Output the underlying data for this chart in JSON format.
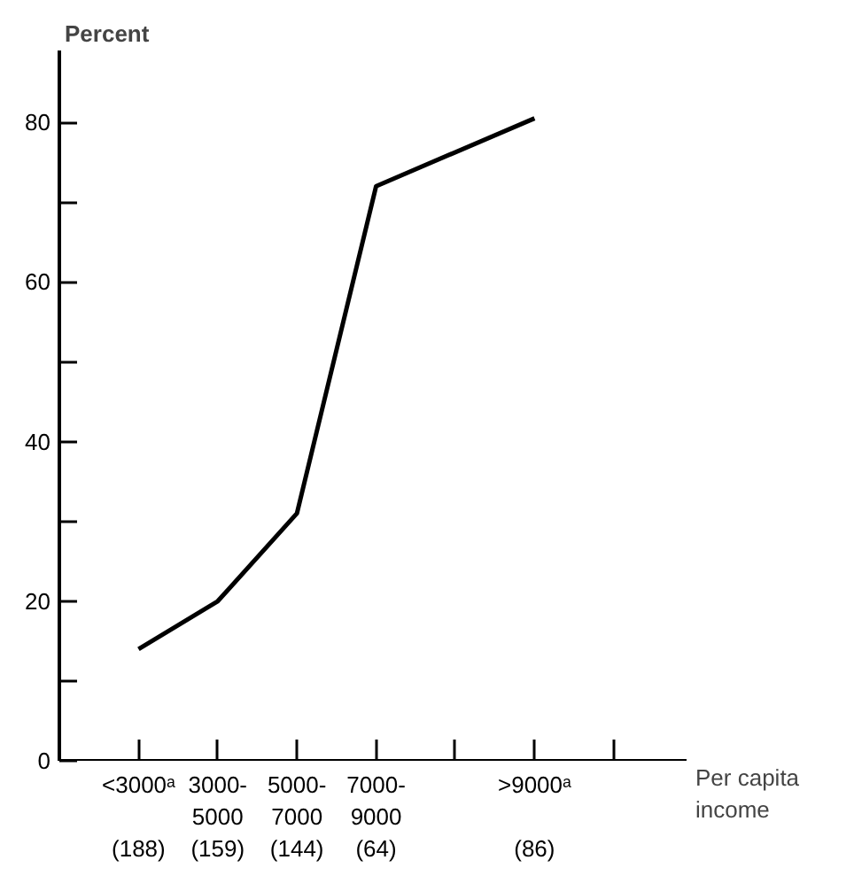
{
  "chart_data": {
    "type": "line",
    "xlabel": "Per capita\nincome",
    "ylabel": "Percent",
    "categories": [
      "<3000ᵃ\n \n(188)",
      "3000-\n5000\n(159)",
      "5000-\n7000\n(144)",
      "7000-\n9000\n(64)",
      null,
      ">9000ᵃ\n \n(86)",
      null
    ],
    "series": [
      {
        "color": "#000000",
        "values": [
          14,
          20,
          31,
          72,
          null,
          80.5,
          null
        ]
      }
    ],
    "ylim": [
      0,
      89
    ],
    "yticks": [
      0,
      {
        "value": 10,
        "label": null
      },
      20,
      {
        "value": 30,
        "label": null
      },
      40,
      {
        "value": 50,
        "label": null
      },
      60,
      {
        "value": 70,
        "label": null
      },
      80
    ],
    "grid": false,
    "marker": "none",
    "line_style": "solid"
  }
}
